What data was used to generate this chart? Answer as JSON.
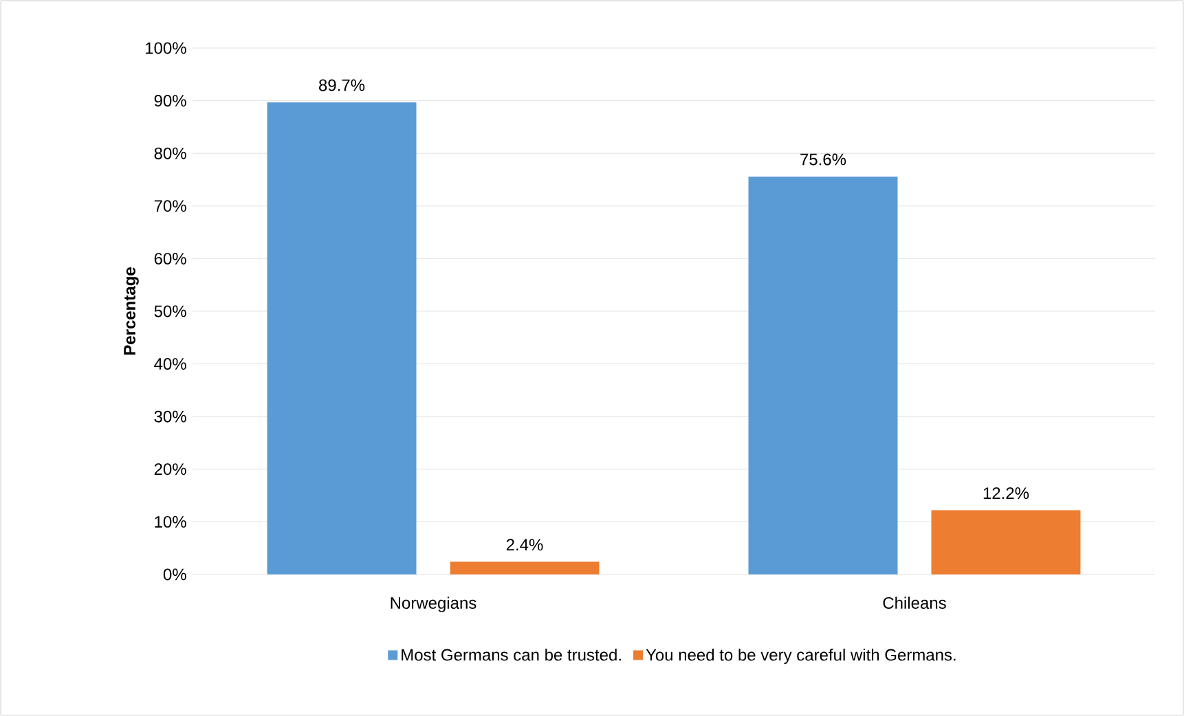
{
  "chart_data": {
    "type": "bar",
    "ylabel": "Percentage",
    "categories": [
      "Norwegians",
      "Chileans"
    ],
    "series": [
      {
        "name": "Most Germans can be trusted.",
        "color": "#5b9bd5",
        "values": [
          89.7,
          75.6
        ],
        "value_labels": [
          "89.7%",
          "75.6%"
        ]
      },
      {
        "name": "You need to be very careful with Germans.",
        "color": "#ed7d31",
        "values": [
          2.4,
          12.2
        ],
        "value_labels": [
          "2.4%",
          "12.2%"
        ]
      }
    ],
    "ylim": [
      0,
      100
    ],
    "yticks": [
      {
        "value": 0,
        "label": "0%"
      },
      {
        "value": 10,
        "label": "10%"
      },
      {
        "value": 20,
        "label": "20%"
      },
      {
        "value": 30,
        "label": "30%"
      },
      {
        "value": 40,
        "label": "40%"
      },
      {
        "value": 50,
        "label": "50%"
      },
      {
        "value": 60,
        "label": "60%"
      },
      {
        "value": 70,
        "label": "70%"
      },
      {
        "value": 80,
        "label": "80%"
      },
      {
        "value": 90,
        "label": "90%"
      },
      {
        "value": 100,
        "label": "100%"
      }
    ],
    "grid": "y",
    "legend": "bottom"
  }
}
